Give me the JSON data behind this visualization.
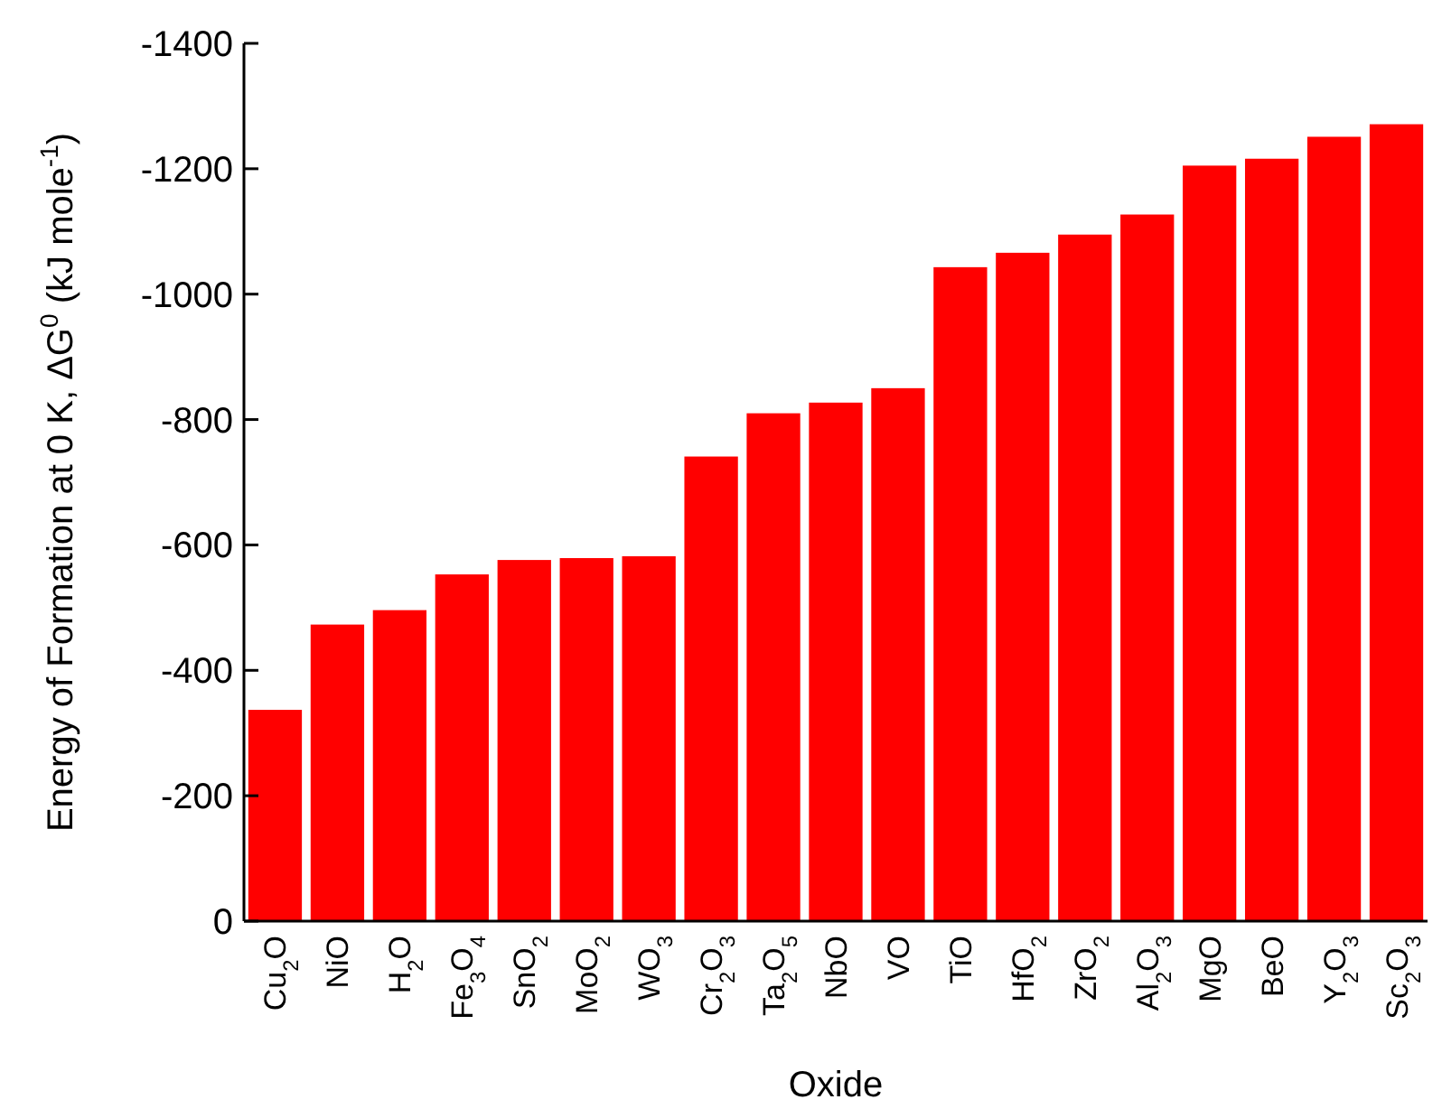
{
  "chart_data": {
    "type": "bar",
    "xlabel": "Oxide",
    "ylabel": "Energy of Formation at 0 K, ΔG$^{0}$ (kJ mole$^{-1}$)",
    "categories": [
      "Cu$_{2}$O",
      "NiO",
      "H$_{2}$O",
      "Fe$_{3}$O$_{4}$",
      "SnO$_{2}$",
      "MoO$_{2}$",
      "WO$_{3}$",
      "Cr$_{2}$O$_{3}$",
      "Ta$_{2}$O$_{5}$",
      "NbO",
      "VO",
      "TiO",
      "HfO$_{2}$",
      "ZrO$_{2}$",
      "Al$_{2}$O$_{3}$",
      "MgO",
      "BeO",
      "Y$_{2}$O$_{3}$",
      "Sc$_{2}$O$_{3}$"
    ],
    "values": [
      -337,
      -473,
      -496,
      -553,
      -576,
      -579,
      -582,
      -741,
      -810,
      -827,
      -850,
      -1043,
      -1066,
      -1095,
      -1127,
      -1205,
      -1216,
      -1251,
      -1271
    ],
    "color": "#ff0000",
    "ylim": [
      0,
      -1400
    ],
    "yticks": [
      0,
      -200,
      -400,
      -600,
      -800,
      -1000,
      -1200,
      -1400
    ]
  }
}
